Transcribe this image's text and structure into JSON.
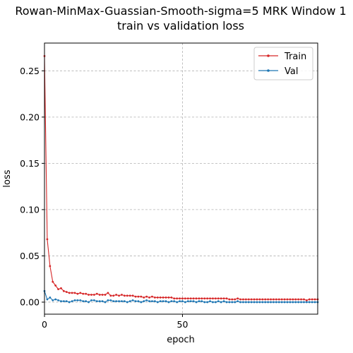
{
  "chart_data": {
    "type": "line",
    "title_line1": "Rowan-MinMax-Guassian-Smooth-sigma=5 MRK Window 1",
    "title_line2": "train vs validation loss",
    "xlabel": "epoch",
    "ylabel": "loss",
    "xlim": [
      0,
      99
    ],
    "ylim": [
      -0.013,
      0.28
    ],
    "xticks": [
      0,
      50
    ],
    "yticks": [
      0.0,
      0.05,
      0.1,
      0.15,
      0.2,
      0.25
    ],
    "ytick_labels": [
      "0.00",
      "0.05",
      "0.10",
      "0.15",
      "0.20",
      "0.25"
    ],
    "grid": true,
    "legend_position": "top-right",
    "series": [
      {
        "name": "Train",
        "color": "#d62728",
        "values": [
          0.266,
          0.068,
          0.039,
          0.022,
          0.018,
          0.014,
          0.015,
          0.012,
          0.011,
          0.01,
          0.01,
          0.01,
          0.009,
          0.01,
          0.009,
          0.009,
          0.008,
          0.008,
          0.008,
          0.009,
          0.008,
          0.008,
          0.008,
          0.01,
          0.007,
          0.007,
          0.008,
          0.007,
          0.008,
          0.007,
          0.007,
          0.007,
          0.007,
          0.006,
          0.006,
          0.006,
          0.005,
          0.006,
          0.005,
          0.006,
          0.005,
          0.005,
          0.005,
          0.005,
          0.005,
          0.005,
          0.005,
          0.004,
          0.004,
          0.004,
          0.004,
          0.004,
          0.004,
          0.004,
          0.004,
          0.004,
          0.004,
          0.004,
          0.004,
          0.004,
          0.004,
          0.004,
          0.004,
          0.004,
          0.004,
          0.004,
          0.004,
          0.003,
          0.003,
          0.003,
          0.004,
          0.003,
          0.003,
          0.003,
          0.003,
          0.003,
          0.003,
          0.003,
          0.003,
          0.003,
          0.003,
          0.003,
          0.003,
          0.003,
          0.003,
          0.003,
          0.003,
          0.003,
          0.003,
          0.003,
          0.003,
          0.003,
          0.003,
          0.003,
          0.003,
          0.002,
          0.003,
          0.003,
          0.003,
          0.003
        ]
      },
      {
        "name": "Val",
        "color": "#1f77b4",
        "values": [
          0.012,
          0.003,
          0.005,
          0.002,
          0.003,
          0.002,
          0.001,
          0.001,
          0.001,
          0.0,
          0.001,
          0.002,
          0.002,
          0.002,
          0.001,
          0.001,
          0.0,
          0.002,
          0.002,
          0.001,
          0.001,
          0.001,
          0.0,
          0.002,
          0.002,
          0.001,
          0.001,
          0.001,
          0.001,
          0.001,
          0.0,
          0.001,
          0.002,
          0.001,
          0.001,
          0.0,
          0.001,
          0.002,
          0.001,
          0.001,
          0.001,
          0.0,
          0.001,
          0.001,
          0.001,
          0.0,
          0.001,
          0.001,
          0.0,
          0.001,
          0.001,
          0.0,
          0.001,
          0.001,
          0.001,
          0.0,
          0.001,
          0.001,
          0.0,
          0.0,
          0.001,
          0.0,
          0.0,
          0.001,
          0.0,
          0.001,
          0.0,
          0.0,
          0.0,
          0.0,
          0.001,
          0.0,
          0.0,
          0.0,
          0.0,
          0.0,
          0.0,
          0.0,
          0.0,
          0.0,
          0.0,
          0.0,
          0.0,
          0.0,
          0.0,
          0.0,
          0.0,
          0.0,
          0.0,
          0.0,
          0.0,
          0.0,
          0.0,
          0.0,
          0.0,
          0.0,
          0.0,
          0.0,
          0.0,
          0.0
        ]
      }
    ]
  }
}
